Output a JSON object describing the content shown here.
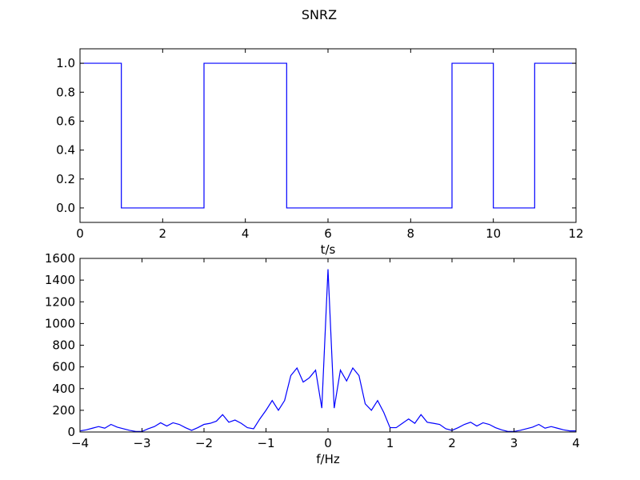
{
  "figure": {
    "title": "SNRZ"
  },
  "chart_data": [
    {
      "type": "line",
      "title": "",
      "xlabel": "t/s",
      "ylabel": "",
      "xlim": [
        0,
        12
      ],
      "ylim": [
        -0.1,
        1.1
      ],
      "x_ticks": [
        0,
        2,
        4,
        6,
        8,
        10,
        12
      ],
      "x_tick_labels": [
        "0",
        "2",
        "4",
        "6",
        "8",
        "10",
        "12"
      ],
      "y_ticks": [
        0.0,
        0.2,
        0.4,
        0.6,
        0.8,
        1.0
      ],
      "y_tick_labels": [
        "0.0",
        "0.2",
        "0.4",
        "0.6",
        "0.8",
        "1.0"
      ],
      "grid": false,
      "color": "#0000ff",
      "step": true,
      "series": [
        {
          "name": "",
          "x": [
            0,
            1,
            1,
            3,
            3,
            5,
            5,
            9,
            9,
            10,
            10,
            11,
            11,
            12
          ],
          "y": [
            1,
            1,
            0,
            0,
            1,
            1,
            0,
            0,
            1,
            1,
            0,
            0,
            1,
            1
          ]
        }
      ]
    },
    {
      "type": "line",
      "title": "",
      "xlabel": "f/Hz",
      "ylabel": "",
      "xlim": [
        -4,
        4
      ],
      "ylim": [
        0,
        1600
      ],
      "x_ticks": [
        -4,
        -3,
        -2,
        -1,
        0,
        1,
        2,
        3,
        4
      ],
      "x_tick_labels": [
        "−4",
        "−3",
        "−2",
        "−1",
        "0",
        "1",
        "2",
        "3",
        "4"
      ],
      "y_ticks": [
        0,
        200,
        400,
        600,
        800,
        1000,
        1200,
        1400,
        1600
      ],
      "y_tick_labels": [
        "0",
        "200",
        "400",
        "600",
        "800",
        "1000",
        "1200",
        "1400",
        "1600"
      ],
      "grid": false,
      "color": "#0000ff",
      "series": [
        {
          "name": "",
          "x": [
            -4.0,
            -3.9,
            -3.8,
            -3.7,
            -3.6,
            -3.5,
            -3.4,
            -3.3,
            -3.2,
            -3.1,
            -3.0,
            -2.9,
            -2.8,
            -2.7,
            -2.6,
            -2.5,
            -2.4,
            -2.3,
            -2.2,
            -2.1,
            -2.0,
            -1.9,
            -1.8,
            -1.7,
            -1.6,
            -1.5,
            -1.4,
            -1.3,
            -1.2,
            -1.1,
            -1.0,
            -0.9,
            -0.8,
            -0.7,
            -0.6,
            -0.5,
            -0.4,
            -0.3,
            -0.2,
            -0.1,
            0.0,
            0.1,
            0.2,
            0.3,
            0.4,
            0.5,
            0.6,
            0.7,
            0.8,
            0.9,
            1.0,
            1.1,
            1.2,
            1.3,
            1.4,
            1.5,
            1.6,
            1.7,
            1.8,
            1.9,
            2.0,
            2.1,
            2.2,
            2.3,
            2.4,
            2.5,
            2.6,
            2.7,
            2.8,
            2.9,
            3.0,
            3.1,
            3.2,
            3.3,
            3.4,
            3.5,
            3.6,
            3.7,
            3.8,
            3.9,
            4.0
          ],
          "y": [
            10,
            20,
            35,
            50,
            35,
            70,
            45,
            30,
            15,
            5,
            5,
            30,
            50,
            85,
            55,
            85,
            70,
            40,
            15,
            40,
            70,
            80,
            100,
            160,
            90,
            110,
            80,
            40,
            30,
            120,
            200,
            290,
            200,
            290,
            520,
            590,
            460,
            500,
            570,
            220,
            1500,
            220,
            570,
            470,
            590,
            520,
            260,
            200,
            290,
            180,
            40,
            40,
            80,
            120,
            80,
            160,
            90,
            80,
            70,
            30,
            15,
            40,
            70,
            90,
            55,
            85,
            70,
            40,
            20,
            5,
            5,
            15,
            30,
            45,
            70,
            35,
            50,
            35,
            20,
            10,
            10
          ]
        }
      ]
    }
  ]
}
